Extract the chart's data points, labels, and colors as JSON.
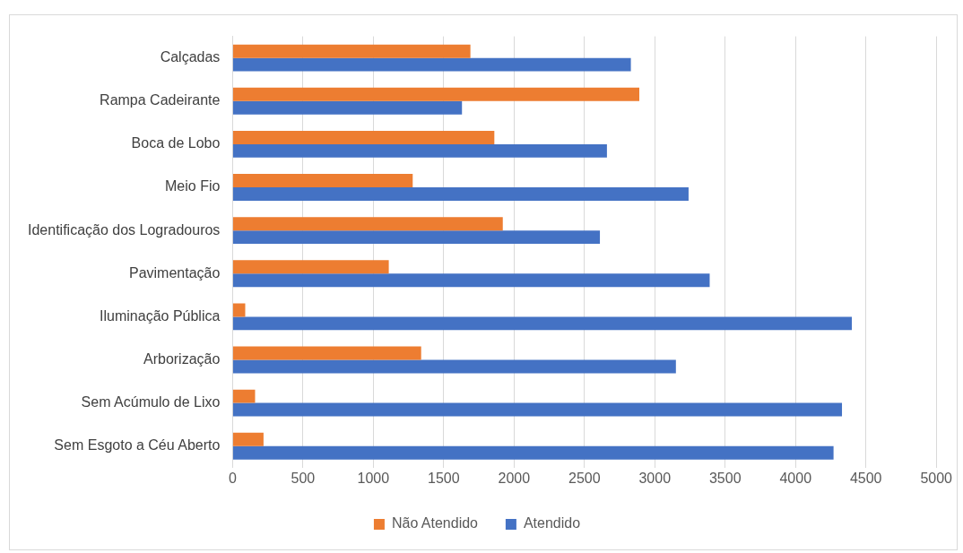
{
  "chart_data": {
    "type": "bar",
    "orientation": "horizontal",
    "categories": [
      "Calçadas",
      "Rampa Cadeirante",
      "Boca de Lobo",
      "Meio Fio",
      "Identificação dos Logradouros",
      "Pavimentação",
      "Iluminação Pública",
      "Arborização",
      "Sem Acúmulo de Lixo",
      "Sem Esgoto a Céu Aberto"
    ],
    "series": [
      {
        "name": "Não Atendido",
        "color": "#ed7d31",
        "values": [
          1690,
          2890,
          1860,
          1280,
          1920,
          1110,
          90,
          1340,
          160,
          220
        ]
      },
      {
        "name": "Atendido",
        "color": "#4472c4",
        "values": [
          2830,
          1630,
          2660,
          3240,
          2610,
          3390,
          4400,
          3150,
          4330,
          4270
        ]
      }
    ],
    "xlim": [
      0,
      5000
    ],
    "xticks": [
      0,
      500,
      1000,
      1500,
      2000,
      2500,
      3000,
      3500,
      4000,
      4500,
      5000
    ],
    "grid": "x",
    "legend": "bottom"
  }
}
